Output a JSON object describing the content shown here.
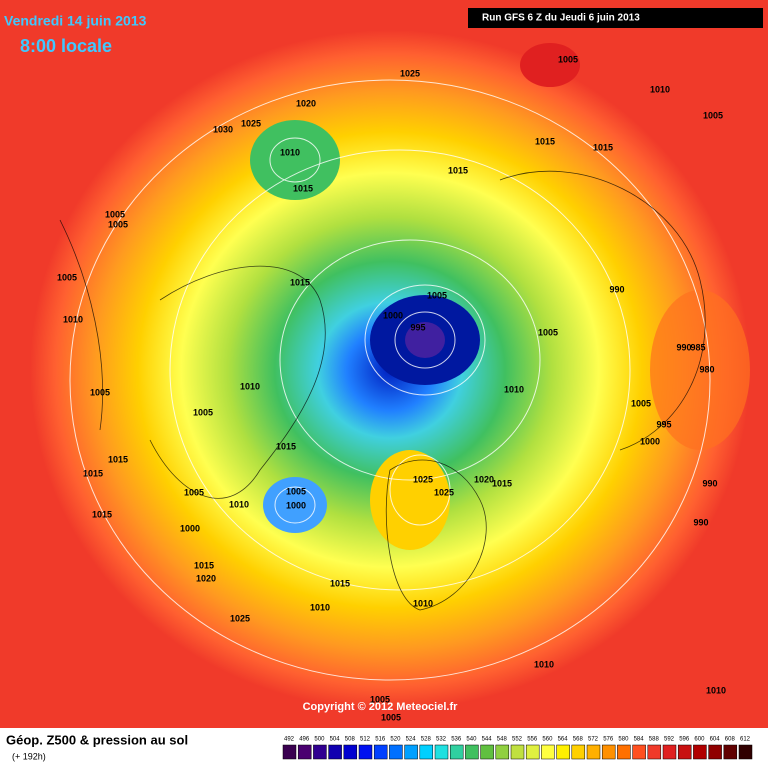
{
  "header": {
    "date": "Vendredi 14 juin 2013",
    "time": "8:00 locale",
    "run": "Run GFS 6 Z du Jeudi 6 juin 2013"
  },
  "map": {
    "isobar_labels": [
      1005,
      1010,
      1025,
      1020,
      1025,
      1030,
      1005,
      1010,
      1015,
      1015,
      1015,
      1015,
      1005,
      1005,
      1005,
      1015,
      990,
      1005,
      1000,
      995,
      1010,
      1005,
      990,
      985,
      980,
      1010,
      1010,
      1005,
      1005,
      1005,
      995,
      1000,
      1015,
      1015,
      1015,
      1025,
      1020,
      1015,
      1005,
      1025,
      1005,
      1000,
      1010,
      990,
      990,
      1015,
      1000,
      1015,
      1020,
      1015,
      1010,
      1010,
      1025,
      1010,
      1010,
      1005,
      1005
    ],
    "copyright": "Copyright © 2012 Meteociel.fr"
  },
  "footer": {
    "title": "Géop. Z500 & pression au sol",
    "lead": "(+ 192h)",
    "scale": {
      "values": [
        492,
        496,
        500,
        504,
        508,
        512,
        516,
        520,
        524,
        528,
        532,
        536,
        540,
        544,
        548,
        552,
        556,
        560,
        564,
        568,
        572,
        576,
        580,
        584,
        588,
        592,
        596,
        600,
        604,
        608,
        612
      ],
      "colors": [
        "#3a0050",
        "#4a0070",
        "#300090",
        "#1000b0",
        "#0000d0",
        "#0010f0",
        "#0040ff",
        "#0070ff",
        "#00a0ff",
        "#00d0ff",
        "#20e0e0",
        "#30d0a0",
        "#40c060",
        "#60c040",
        "#90d040",
        "#c0e040",
        "#e0f040",
        "#ffff40",
        "#fff000",
        "#ffd000",
        "#ffb000",
        "#ff9000",
        "#ff7000",
        "#ff5020",
        "#f03a2a",
        "#e02020",
        "#c81010",
        "#b00000",
        "#900000",
        "#600000",
        "#300000"
      ]
    }
  }
}
